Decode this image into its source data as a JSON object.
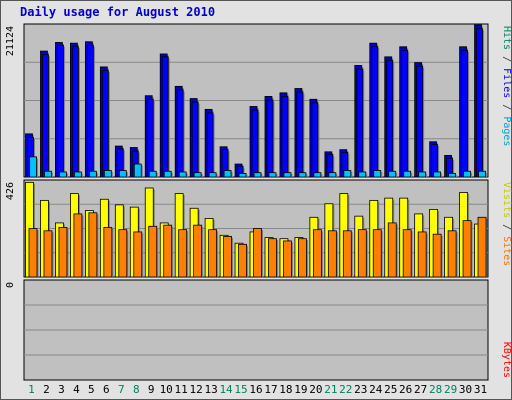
{
  "chart_data": [
    {
      "type": "bar",
      "title": "Daily usage for August 2010",
      "ylabel_parts": [
        {
          "text": "Pages",
          "color": "#00a0c8"
        },
        {
          "text": " / ",
          "color": "#333333"
        },
        {
          "text": "Files",
          "color": "#0000c8"
        },
        {
          "text": " / ",
          "color": "#333333"
        },
        {
          "text": "Hits",
          "color": "#008060"
        }
      ],
      "ymax_label": "21124",
      "ymax": 21124,
      "categories": [
        "1",
        "2",
        "3",
        "4",
        "5",
        "6",
        "7",
        "8",
        "9",
        "10",
        "11",
        "12",
        "13",
        "14",
        "15",
        "16",
        "17",
        "18",
        "19",
        "20",
        "21",
        "22",
        "23",
        "24",
        "25",
        "26",
        "27",
        "28",
        "29",
        "30",
        "31"
      ],
      "weekend_days": [
        "1",
        "7",
        "8",
        "14",
        "15",
        "21",
        "22",
        "28",
        "29"
      ],
      "series": [
        {
          "name": "Hits",
          "color": "#0000c8",
          "values": [
            6000,
            17500,
            18700,
            18600,
            18800,
            15300,
            4300,
            4100,
            11300,
            17100,
            12600,
            10900,
            9400,
            4200,
            1800,
            9800,
            11200,
            11700,
            12300,
            10800,
            3500,
            3800,
            15500,
            18600,
            16700,
            18100,
            15900,
            4900,
            3000,
            18100,
            21124
          ]
        },
        {
          "name": "Files",
          "color": "#0000ff",
          "values": [
            5500,
            17000,
            18300,
            18100,
            18300,
            14800,
            3900,
            3600,
            10800,
            16700,
            12100,
            10400,
            8900,
            3800,
            1500,
            9300,
            10700,
            11200,
            11800,
            10300,
            3100,
            3400,
            15000,
            18100,
            16200,
            17600,
            15400,
            4500,
            2600,
            17600,
            20600
          ]
        },
        {
          "name": "Pages",
          "color": "#00c0ff",
          "values": [
            2800,
            800,
            700,
            700,
            800,
            900,
            900,
            1800,
            800,
            800,
            700,
            600,
            600,
            900,
            500,
            600,
            600,
            600,
            600,
            600,
            600,
            900,
            700,
            900,
            800,
            800,
            700,
            700,
            500,
            800,
            800
          ]
        }
      ]
    },
    {
      "type": "bar",
      "ylabel_parts": [
        {
          "text": "Sites",
          "color": "#e87800"
        },
        {
          "text": " / ",
          "color": "#333333"
        },
        {
          "text": "Visits",
          "color": "#c8c800"
        }
      ],
      "ymax_label": "426",
      "ymax": 426,
      "categories": [
        "1",
        "2",
        "3",
        "4",
        "5",
        "6",
        "7",
        "8",
        "9",
        "10",
        "11",
        "12",
        "13",
        "14",
        "15",
        "16",
        "17",
        "18",
        "19",
        "20",
        "21",
        "22",
        "23",
        "24",
        "25",
        "26",
        "27",
        "28",
        "29",
        "30",
        "31"
      ],
      "series": [
        {
          "name": "Visits",
          "color": "#ffff00",
          "values": [
            420,
            340,
            240,
            370,
            295,
            345,
            320,
            310,
            395,
            240,
            370,
            305,
            260,
            185,
            150,
            200,
            175,
            170,
            175,
            265,
            325,
            370,
            270,
            340,
            350,
            350,
            280,
            300,
            265,
            375,
            235
          ]
        },
        {
          "name": "Sites",
          "color": "#ff8000",
          "values": [
            215,
            205,
            220,
            280,
            285,
            220,
            210,
            200,
            225,
            230,
            210,
            230,
            210,
            180,
            145,
            215,
            170,
            160,
            170,
            210,
            205,
            205,
            210,
            210,
            240,
            210,
            200,
            190,
            205,
            250,
            265
          ]
        }
      ]
    },
    {
      "type": "bar",
      "ylabel": "KBytes",
      "ylabel_color": "#ff0000",
      "ymax_label": "0",
      "ymax": 0,
      "categories": [
        "1",
        "2",
        "3",
        "4",
        "5",
        "6",
        "7",
        "8",
        "9",
        "10",
        "11",
        "12",
        "13",
        "14",
        "15",
        "16",
        "17",
        "18",
        "19",
        "20",
        "21",
        "22",
        "23",
        "24",
        "25",
        "26",
        "27",
        "28",
        "29",
        "30",
        "31"
      ],
      "series": [
        {
          "name": "KBytes",
          "color": "#ff0000",
          "values": [
            0,
            0,
            0,
            0,
            0,
            0,
            0,
            0,
            0,
            0,
            0,
            0,
            0,
            0,
            0,
            0,
            0,
            0,
            0,
            0,
            0,
            0,
            0,
            0,
            0,
            0,
            0,
            0,
            0,
            0,
            0
          ]
        }
      ]
    }
  ]
}
